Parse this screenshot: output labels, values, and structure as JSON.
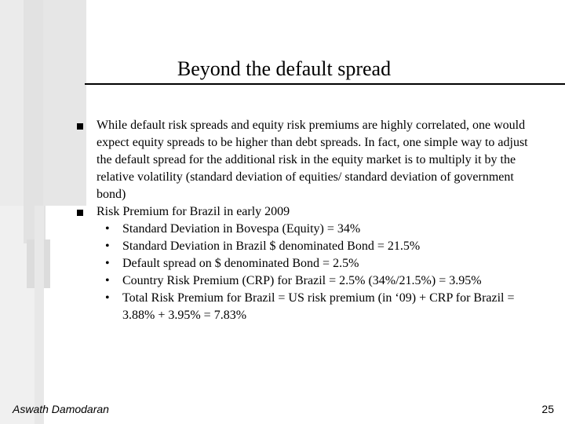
{
  "title": "Beyond the default spread",
  "bullets": [
    "While default risk spreads and equity risk premiums are highly correlated, one would expect equity spreads to be higher than debt spreads.  In fact, one simple way to adjust the default spread for the additional risk in the equity market is to multiply it by the relative volatility (standard deviation of equities/ standard deviation of government bond)",
    "Risk Premium for Brazil in early 2009"
  ],
  "sub_bullets": [
    "Standard Deviation in Bovespa (Equity) = 34%",
    "Standard Deviation in Brazil $ denominated Bond = 21.5%",
    "Default spread on $ denominated Bond = 2.5%",
    "Country Risk Premium (CRP) for Brazil = 2.5% (34%/21.5%) =  3.95%",
    "Total Risk Premium for Brazil = US risk premium (in ‘09) + CRP for Brazil = 3.88% + 3.95% = 7.83%"
  ],
  "footer": {
    "author": "Aswath Damodaran",
    "page": "25"
  }
}
